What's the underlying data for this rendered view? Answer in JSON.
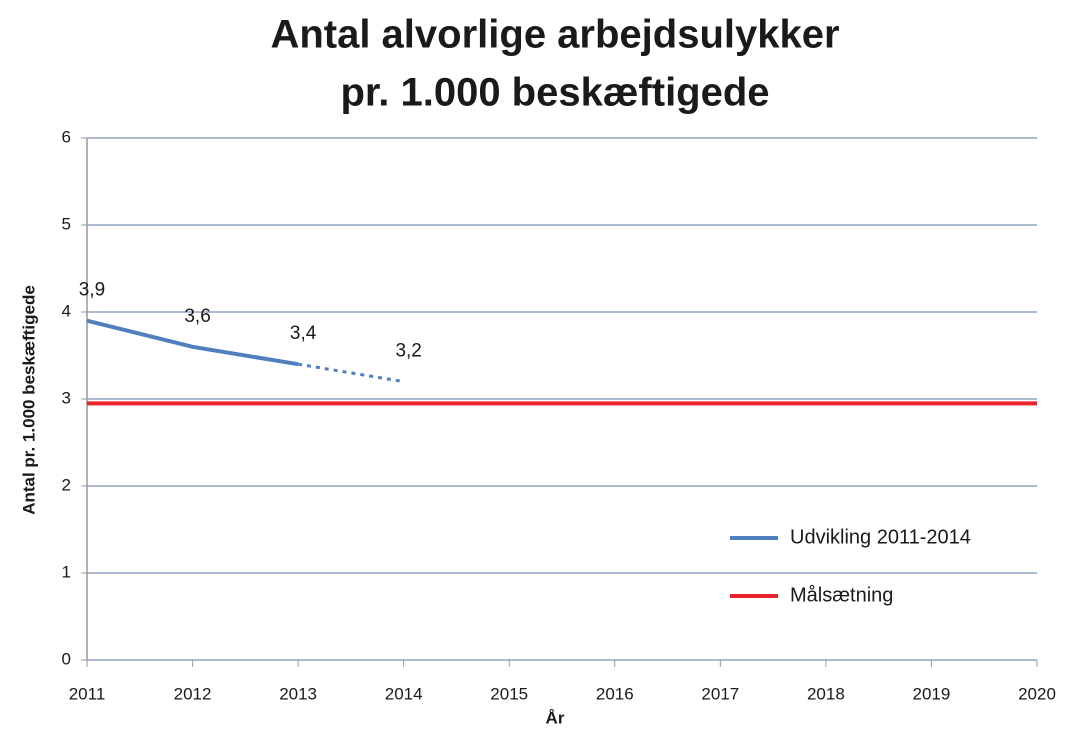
{
  "chart_data": {
    "type": "line",
    "title": [
      "Antal alvorlige arbejdsulykker",
      "pr. 1.000 beskæftigede"
    ],
    "x_label": "År",
    "y_label": "Antal pr. 1.000 beskæftigede",
    "xlim": [
      2011,
      2020
    ],
    "xticks": [
      2011,
      2012,
      2013,
      2014,
      2015,
      2016,
      2017,
      2018,
      2019,
      2020
    ],
    "ylim": [
      0,
      6
    ],
    "yticks": [
      0,
      1,
      2,
      3,
      4,
      5,
      6
    ],
    "grid": true,
    "legend": "right",
    "series": [
      {
        "name": "Udvikling 2011-2014",
        "color": "#4f7fc0",
        "x": [
          2011,
          2012,
          2013,
          2014
        ],
        "values": [
          3.9,
          3.6,
          3.4,
          3.2
        ],
        "value_labels": [
          "3,9",
          "3,6",
          "3,4",
          "3,2"
        ],
        "dashed_from_x": 2013
      },
      {
        "name": "Målsætning",
        "color": "#e8222a",
        "x": [
          2011,
          2020
        ],
        "values": [
          2.95,
          2.95
        ]
      }
    ]
  }
}
